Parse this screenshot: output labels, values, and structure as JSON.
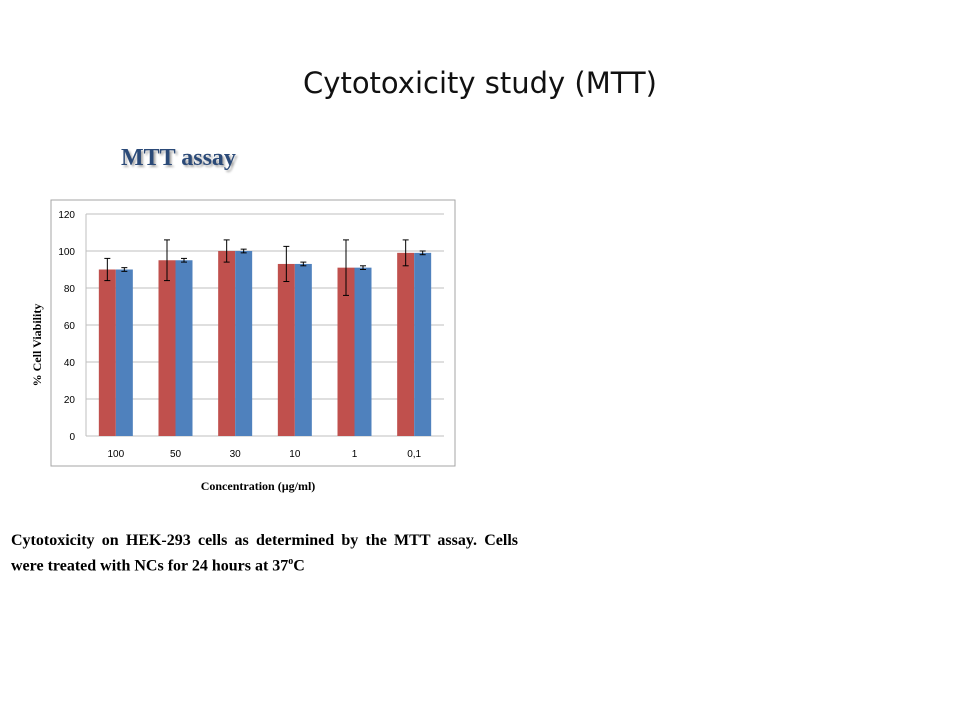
{
  "slide": {
    "title": "Cytotoxicity study (MTT)",
    "subtitle": "MTT assay",
    "caption_text": "Cytotoxicity on HEK-293 cells as determined by the MTT assay. Cells were treated with NCs for 24 hours at 37",
    "caption_sup": "o",
    "caption_unit": "C"
  },
  "colors": {
    "series_1": "#c0504d",
    "series_2": "#4f81bd",
    "grid": "#bfbfbf",
    "frame": "#a6a6a6"
  },
  "chart_data": {
    "type": "bar",
    "categories": [
      "100",
      "50",
      "30",
      "10",
      "1",
      "0,1"
    ],
    "series": [
      {
        "values": [
          90,
          95,
          100,
          93,
          91,
          99
        ],
        "errors": [
          6,
          11,
          6,
          9.5,
          15,
          7
        ]
      },
      {
        "values": [
          90,
          95,
          100,
          93,
          91,
          99
        ],
        "errors": [
          1,
          1,
          1,
          1,
          1,
          1
        ]
      }
    ],
    "xlabel": "Concentration (µg/ml)",
    "ylabel": "% Cell Viability",
    "ylim": [
      0,
      120
    ],
    "yticks": [
      0,
      20,
      40,
      60,
      80,
      100,
      120
    ],
    "grid": true,
    "legend": "none"
  }
}
